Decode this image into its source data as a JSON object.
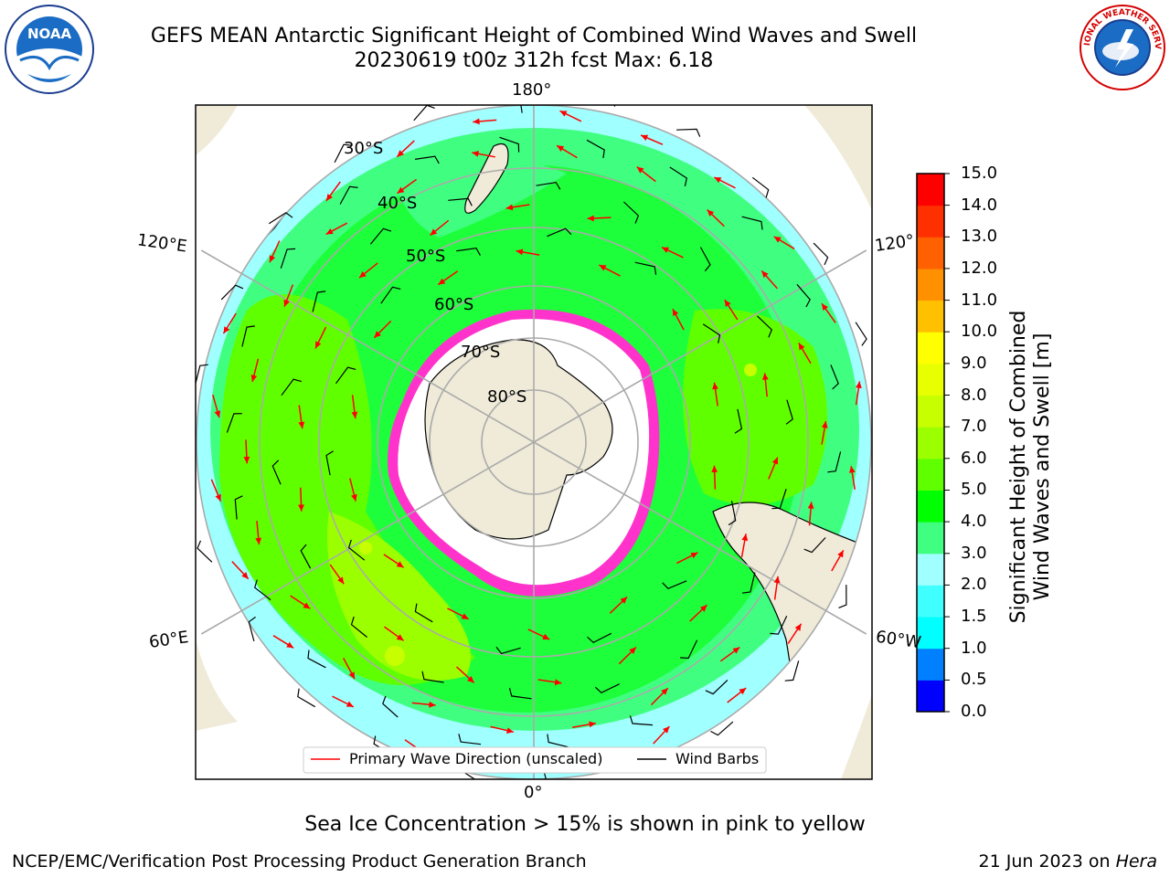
{
  "header": {
    "title_line1": "GEFS MEAN Antarctic Significant Height of Combined Wind Waves and Swell",
    "title_line2": "20230619 t00z 312h fcst   Max: 6.18"
  },
  "logos": {
    "left": {
      "name": "NOAA",
      "text": "NOAA"
    },
    "right": {
      "name": "NATIONAL WEATHER SERVICE",
      "text": "NATIONAL WEATHER SERVICE"
    }
  },
  "map": {
    "projection": "south-polar-stereographic",
    "longitude_labels": [
      "180°",
      "120°E",
      "120°",
      "60°E",
      "60°W",
      "0°"
    ],
    "latitude_labels": [
      "30°S",
      "40°S",
      "50°S",
      "60°S",
      "70°S",
      "80°S"
    ],
    "legend": [
      {
        "label": "Primary Wave Direction (unscaled)",
        "color": "#ff0000"
      },
      {
        "label": "Wind Barbs",
        "color": "#000000"
      }
    ],
    "colors": {
      "land": "#efebd8",
      "ice": "#ffffff",
      "sea_ice_edge": "#ff33cc"
    }
  },
  "colorbar": {
    "label_line1": "Significant Height of Combined",
    "label_line2": "Wind Waves and Swell [m]",
    "ticks": [
      "0.0",
      "0.5",
      "1.0",
      "1.5",
      "2.0",
      "3.0",
      "4.0",
      "5.0",
      "6.0",
      "7.0",
      "8.0",
      "9.0",
      "10.0",
      "11.0",
      "12.0",
      "13.0",
      "14.0",
      "15.0"
    ],
    "colors": [
      "#0000ff",
      "#0080ff",
      "#00ffff",
      "#40ffff",
      "#a0ffff",
      "#40ff80",
      "#00ff00",
      "#60ff00",
      "#9cff00",
      "#c8ff00",
      "#e8ff00",
      "#ffff00",
      "#ffc000",
      "#ff9000",
      "#ff6000",
      "#ff3000",
      "#ff0000"
    ]
  },
  "footer": {
    "note": "Sea Ice Concentration > 15% is shown in pink to yellow",
    "left": "NCEP/EMC/Verification Post Processing Product Generation Branch",
    "right_date": "21 Jun 2023 on",
    "right_host": "Hera"
  }
}
